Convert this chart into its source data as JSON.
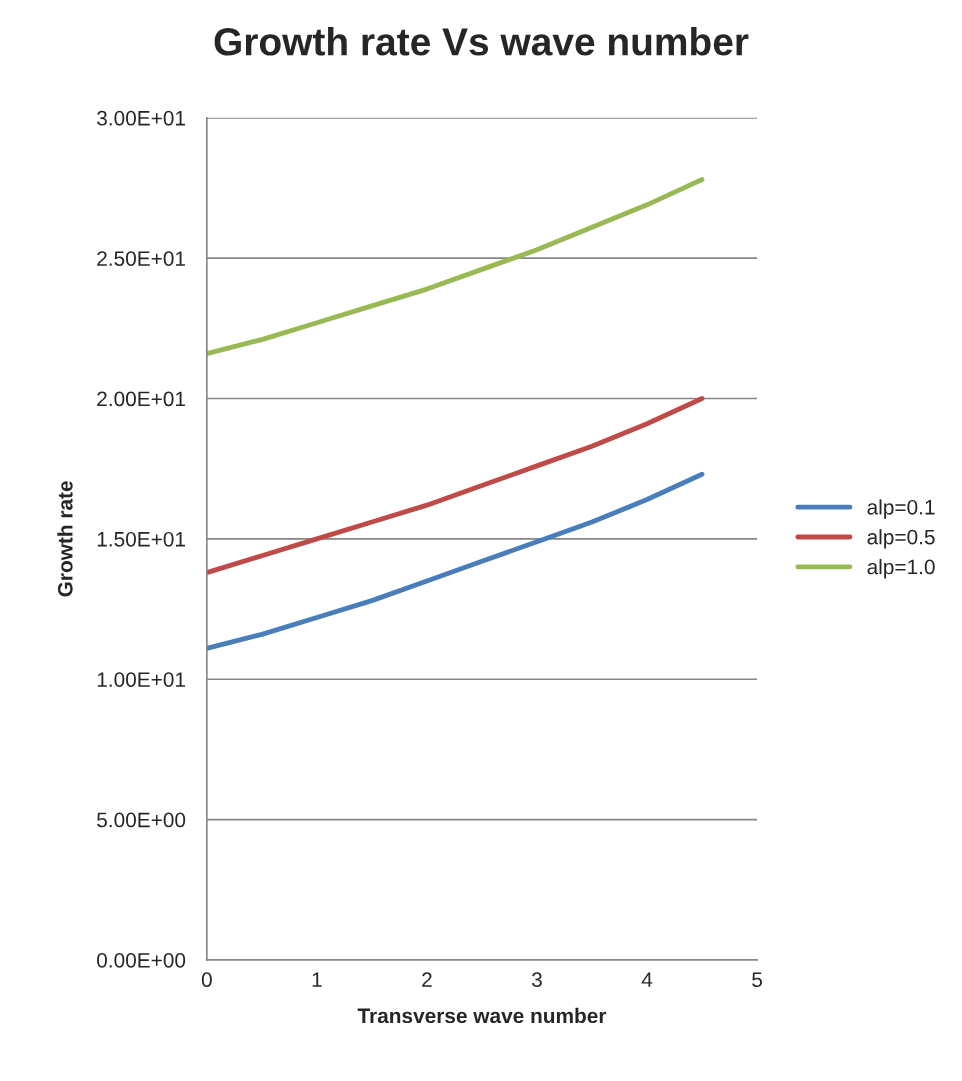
{
  "chart_data": {
    "type": "line",
    "title": "Growth rate Vs wave number",
    "xlabel": "Transverse wave number",
    "ylabel": "Growth rate",
    "x": [
      0,
      0.5,
      1,
      1.5,
      2,
      2.5,
      3,
      3.5,
      4,
      4.5
    ],
    "series": [
      {
        "name": "alp=0.1",
        "color": "#4a7ebb",
        "values": [
          11.1,
          11.6,
          12.2,
          12.8,
          13.5,
          14.2,
          14.9,
          15.6,
          16.4,
          17.3
        ]
      },
      {
        "name": "alp=0.5",
        "color": "#be4b48",
        "values": [
          13.8,
          14.4,
          15.0,
          15.6,
          16.2,
          16.9,
          17.6,
          18.3,
          19.1,
          20.0
        ]
      },
      {
        "name": "alp=1.0",
        "color": "#98b954",
        "values": [
          21.6,
          22.1,
          22.7,
          23.3,
          23.9,
          24.6,
          25.3,
          26.1,
          26.9,
          27.8
        ]
      }
    ],
    "xlim": [
      0,
      5
    ],
    "xticks": [
      0,
      1,
      2,
      3,
      4,
      5
    ],
    "ylim": [
      0,
      30
    ],
    "yticks": [
      {
        "value": 0,
        "label": "0.00E+00"
      },
      {
        "value": 5,
        "label": "5.00E+00"
      },
      {
        "value": 10,
        "label": "1.00E+01"
      },
      {
        "value": 15,
        "label": "1.50E+01"
      },
      {
        "value": 20,
        "label": "2.00E+01"
      },
      {
        "value": 25,
        "label": "2.50E+01"
      },
      {
        "value": 30,
        "label": "3.00E+01"
      }
    ],
    "grid": "y",
    "legend": "right",
    "marker": "none",
    "line_style": "solid"
  }
}
